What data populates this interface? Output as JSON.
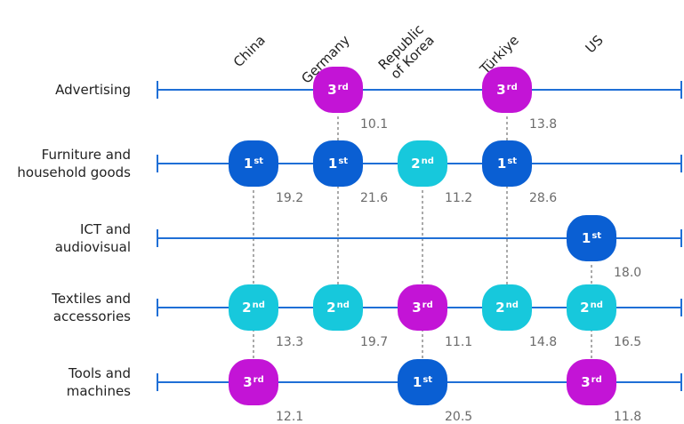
{
  "chart_data": {
    "type": "dot-matrix",
    "countries": [
      "China",
      "Germany",
      "Republic\nof Korea",
      "Türkiye",
      "US"
    ],
    "categories": [
      "Advertising",
      "Furniture and\nhousehold goods",
      "ICT and\naudiovisual",
      "Textiles and\naccessories",
      "Tools and\nmachines"
    ],
    "cells": [
      {
        "country": 1,
        "category": 0,
        "rank": "3",
        "suffix": "rd",
        "value": "10.1"
      },
      {
        "country": 3,
        "category": 0,
        "rank": "3",
        "suffix": "rd",
        "value": "13.8"
      },
      {
        "country": 0,
        "category": 1,
        "rank": "1",
        "suffix": "st",
        "value": "19.2"
      },
      {
        "country": 1,
        "category": 1,
        "rank": "1",
        "suffix": "st",
        "value": "21.6"
      },
      {
        "country": 2,
        "category": 1,
        "rank": "2",
        "suffix": "nd",
        "value": "11.2"
      },
      {
        "country": 3,
        "category": 1,
        "rank": "1",
        "suffix": "st",
        "value": "28.6"
      },
      {
        "country": 4,
        "category": 2,
        "rank": "1",
        "suffix": "st",
        "value": "18.0"
      },
      {
        "country": 0,
        "category": 3,
        "rank": "2",
        "suffix": "nd",
        "value": "13.3"
      },
      {
        "country": 1,
        "category": 3,
        "rank": "2",
        "suffix": "nd",
        "value": "19.7"
      },
      {
        "country": 2,
        "category": 3,
        "rank": "3",
        "suffix": "rd",
        "value": "11.1"
      },
      {
        "country": 3,
        "category": 3,
        "rank": "2",
        "suffix": "nd",
        "value": "14.8"
      },
      {
        "country": 4,
        "category": 3,
        "rank": "2",
        "suffix": "nd",
        "value": "16.5"
      },
      {
        "country": 0,
        "category": 4,
        "rank": "3",
        "suffix": "rd",
        "value": "12.1"
      },
      {
        "country": 2,
        "category": 4,
        "rank": "1",
        "suffix": "st",
        "value": "20.5"
      },
      {
        "country": 4,
        "category": 4,
        "rank": "3",
        "suffix": "rd",
        "value": "11.8"
      }
    ],
    "rank_colors": {
      "1": "#0a5fd3",
      "2": "#17c8dc",
      "3": "#c314d6"
    },
    "line_color": "#1f6fd6",
    "guide_color": "#555555",
    "value_color": "#6b6b6b"
  }
}
